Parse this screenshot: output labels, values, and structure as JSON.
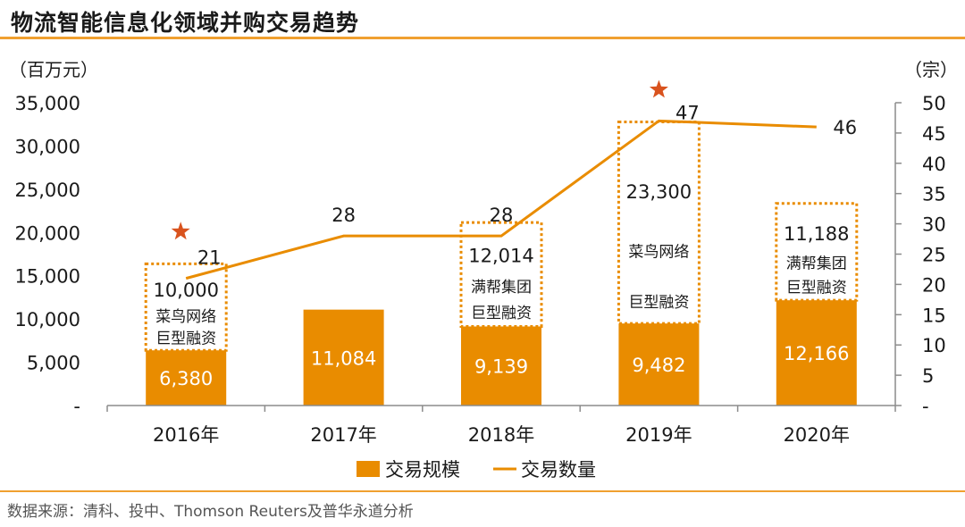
{
  "title": "物流智能信息化领域并购交易趋势",
  "source": "数据来源：清科、投中、Thomson Reuters及普华永道分析",
  "colors": {
    "bar": "#E98C00",
    "line": "#E98C00",
    "star": "#D9531E",
    "rule": "#F0A030"
  },
  "chart_data": {
    "type": "bar+line",
    "categories": [
      "2016年",
      "2017年",
      "2018年",
      "2019年",
      "2020年"
    ],
    "series": [
      {
        "name": "交易规模",
        "type": "bar",
        "axis": "left",
        "values": [
          6380,
          11084,
          9139,
          9482,
          12166
        ],
        "labels": [
          "6,380",
          "11,084",
          "9,139",
          "9,482",
          "12,166"
        ]
      },
      {
        "name": "交易数量",
        "type": "line",
        "axis": "right",
        "values": [
          21,
          28,
          28,
          47,
          46
        ],
        "labels": [
          "21",
          "28",
          "28",
          "47",
          "46"
        ]
      }
    ],
    "mega_deals": [
      {
        "category": "2016年",
        "value": 10000,
        "value_label": "10,000",
        "text": [
          "菜鸟网络",
          "巨型融资"
        ],
        "star": true
      },
      {
        "category": "2018年",
        "value": 12014,
        "value_label": "12,014",
        "text": [
          "满帮集团",
          "巨型融资"
        ],
        "star": false
      },
      {
        "category": "2019年",
        "value": 23300,
        "value_label": "23,300",
        "text": [
          "菜鸟网络",
          "巨型融资"
        ],
        "star": true
      },
      {
        "category": "2020年",
        "value": 11188,
        "value_label": "11,188",
        "text": [
          "满帮集团",
          "巨型融资"
        ],
        "star": false
      }
    ],
    "left_axis": {
      "unit": "（百万元）",
      "min": 0,
      "max": 35000,
      "ticks": [
        0,
        5000,
        10000,
        15000,
        20000,
        25000,
        30000,
        35000
      ],
      "tick_labels": [
        "-",
        "5,000",
        "10,000",
        "15,000",
        "20,000",
        "25,000",
        "30,000",
        "35,000"
      ]
    },
    "right_axis": {
      "unit": "（宗）",
      "min": 0,
      "max": 50,
      "ticks": [
        0,
        5,
        10,
        15,
        20,
        25,
        30,
        35,
        40,
        45,
        50
      ],
      "tick_labels": [
        "-",
        "5",
        "10",
        "15",
        "20",
        "25",
        "30",
        "35",
        "40",
        "45",
        "50"
      ]
    },
    "legend": {
      "placement": "bottom"
    },
    "grid": false
  }
}
